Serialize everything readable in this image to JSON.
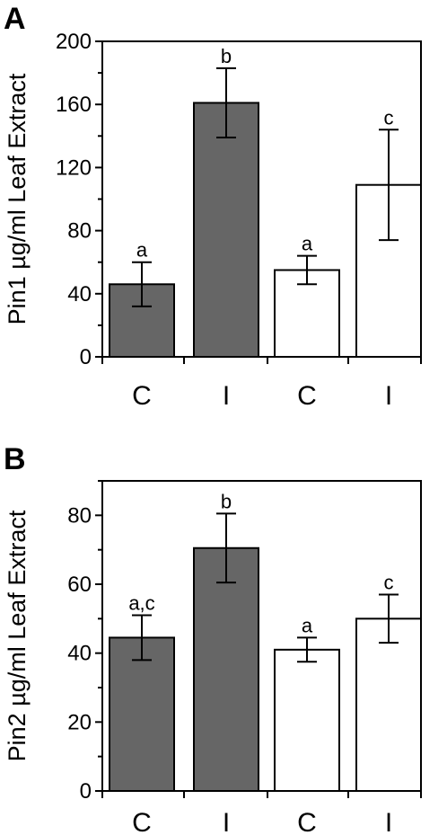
{
  "chart_data": [
    {
      "panel": "A",
      "type": "bar",
      "ylabel": "Pin1 µg/ml Leaf Extract",
      "ylim": [
        0,
        200
      ],
      "yticks": [
        0,
        40,
        80,
        120,
        160,
        200
      ],
      "categories": [
        "C",
        "I",
        "C",
        "I"
      ],
      "values": [
        46,
        161,
        55,
        109
      ],
      "errors": [
        14,
        22,
        9,
        35
      ],
      "significance": [
        "a",
        "b",
        "a",
        "c"
      ],
      "bar_colors": [
        "#666666",
        "#666666",
        "#ffffff",
        "#ffffff"
      ]
    },
    {
      "panel": "B",
      "type": "bar",
      "ylabel": "Pin2 µg/ml Leaf Extract",
      "ylim": [
        0,
        90
      ],
      "yticks": [
        0,
        20,
        40,
        60,
        80
      ],
      "categories": [
        "C",
        "I",
        "C",
        "I"
      ],
      "values": [
        44.5,
        70.5,
        41,
        50
      ],
      "errors": [
        6.5,
        10,
        3.5,
        7
      ],
      "significance": [
        "a,c",
        "b",
        "a",
        "c"
      ],
      "bar_colors": [
        "#666666",
        "#666666",
        "#ffffff",
        "#ffffff"
      ]
    }
  ]
}
